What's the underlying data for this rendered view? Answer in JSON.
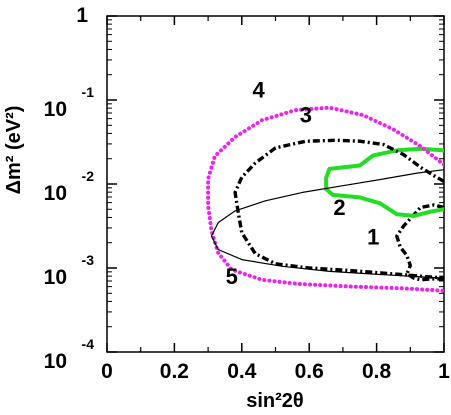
{
  "chart_data": {
    "type": "line",
    "xlabel": "sin²2θ",
    "ylabel": "Δm² (eV²)",
    "xlim": [
      0,
      1
    ],
    "ylim_log10": [
      -4,
      0
    ],
    "yscale": "log",
    "grid": false,
    "legend": "none",
    "x_ticks": [
      "0",
      "0.2",
      "0.4",
      "0.6",
      "0.8",
      "1"
    ],
    "y_ticks": [
      {
        "text": "1",
        "exp": ""
      },
      {
        "text": "10",
        "exp": "-1"
      },
      {
        "text": "10",
        "exp": "-2"
      },
      {
        "text": "10",
        "exp": "-3"
      },
      {
        "text": "10",
        "exp": "-4"
      }
    ],
    "series": [
      {
        "label": "1",
        "style": "dash-dot",
        "color": "#000000",
        "label_at": {
          "x": 0.79,
          "log10_y": -2.72
        },
        "points": [
          [
            1.0,
            -2.28
          ],
          [
            0.97,
            -2.25
          ],
          [
            0.93,
            -2.28
          ],
          [
            0.91,
            -2.37
          ],
          [
            0.88,
            -2.5
          ],
          [
            0.86,
            -2.62
          ],
          [
            0.87,
            -2.75
          ],
          [
            0.89,
            -2.85
          ],
          [
            0.9,
            -2.97
          ],
          [
            0.89,
            -3.07
          ],
          [
            0.91,
            -3.12
          ],
          [
            0.93,
            -3.14
          ],
          [
            0.96,
            -3.13
          ],
          [
            1.0,
            -3.13
          ]
        ]
      },
      {
        "label": "2",
        "style": "solid-thick",
        "color": "#22dd22",
        "label_at": {
          "x": 0.69,
          "log10_y": -2.37
        },
        "points": [
          [
            1.0,
            -1.6
          ],
          [
            0.93,
            -1.58
          ],
          [
            0.86,
            -1.6
          ],
          [
            0.79,
            -1.66
          ],
          [
            0.75,
            -1.78
          ],
          [
            0.66,
            -1.82
          ],
          [
            0.65,
            -1.93
          ],
          [
            0.65,
            -2.06
          ],
          [
            0.67,
            -2.13
          ],
          [
            0.75,
            -2.16
          ],
          [
            0.81,
            -2.23
          ],
          [
            0.86,
            -2.36
          ],
          [
            0.91,
            -2.38
          ],
          [
            0.96,
            -2.33
          ],
          [
            1.0,
            -2.3
          ]
        ]
      },
      {
        "label": "3",
        "style": "dash-dot",
        "color": "#000000",
        "label_at": {
          "x": 0.59,
          "log10_y": -1.27
        },
        "points": [
          [
            1.0,
            -1.97
          ],
          [
            0.97,
            -1.9
          ],
          [
            0.93,
            -1.8
          ],
          [
            0.88,
            -1.65
          ],
          [
            0.82,
            -1.53
          ],
          [
            0.75,
            -1.49
          ],
          [
            0.68,
            -1.48
          ],
          [
            0.59,
            -1.49
          ],
          [
            0.5,
            -1.57
          ],
          [
            0.44,
            -1.75
          ],
          [
            0.4,
            -1.92
          ],
          [
            0.38,
            -2.1
          ],
          [
            0.39,
            -2.35
          ],
          [
            0.4,
            -2.58
          ],
          [
            0.44,
            -2.83
          ],
          [
            0.5,
            -2.95
          ],
          [
            0.6,
            -3.0
          ],
          [
            0.72,
            -3.03
          ],
          [
            0.85,
            -3.07
          ],
          [
            1.0,
            -3.12
          ]
        ]
      },
      {
        "label": "4",
        "style": "dotted",
        "color": "#ee22ee",
        "label_at": {
          "x": 0.45,
          "log10_y": -0.97
        },
        "points": [
          [
            1.0,
            -1.77
          ],
          [
            0.93,
            -1.55
          ],
          [
            0.85,
            -1.35
          ],
          [
            0.76,
            -1.18
          ],
          [
            0.66,
            -1.09
          ],
          [
            0.56,
            -1.12
          ],
          [
            0.46,
            -1.24
          ],
          [
            0.38,
            -1.44
          ],
          [
            0.32,
            -1.67
          ],
          [
            0.3,
            -1.94
          ],
          [
            0.3,
            -2.26
          ],
          [
            0.31,
            -2.56
          ],
          [
            0.33,
            -2.82
          ],
          [
            0.37,
            -3.02
          ],
          [
            0.46,
            -3.14
          ],
          [
            0.57,
            -3.19
          ],
          [
            0.72,
            -3.22
          ],
          [
            0.87,
            -3.24
          ],
          [
            1.0,
            -3.27
          ]
        ]
      },
      {
        "label": "5",
        "style": "solid-thin",
        "color": "#000000",
        "label_at": {
          "x": 0.37,
          "log10_y": -3.19
        },
        "points": [
          [
            1.0,
            -1.83
          ],
          [
            0.92,
            -1.87
          ],
          [
            0.82,
            -1.94
          ],
          [
            0.7,
            -2.02
          ],
          [
            0.58,
            -2.1
          ],
          [
            0.47,
            -2.2
          ],
          [
            0.38,
            -2.32
          ],
          [
            0.33,
            -2.46
          ],
          [
            0.31,
            -2.62
          ],
          [
            0.33,
            -2.78
          ],
          [
            0.4,
            -2.9
          ],
          [
            0.52,
            -2.98
          ],
          [
            0.66,
            -3.04
          ],
          [
            0.82,
            -3.08
          ],
          [
            1.0,
            -3.12
          ]
        ]
      }
    ]
  }
}
